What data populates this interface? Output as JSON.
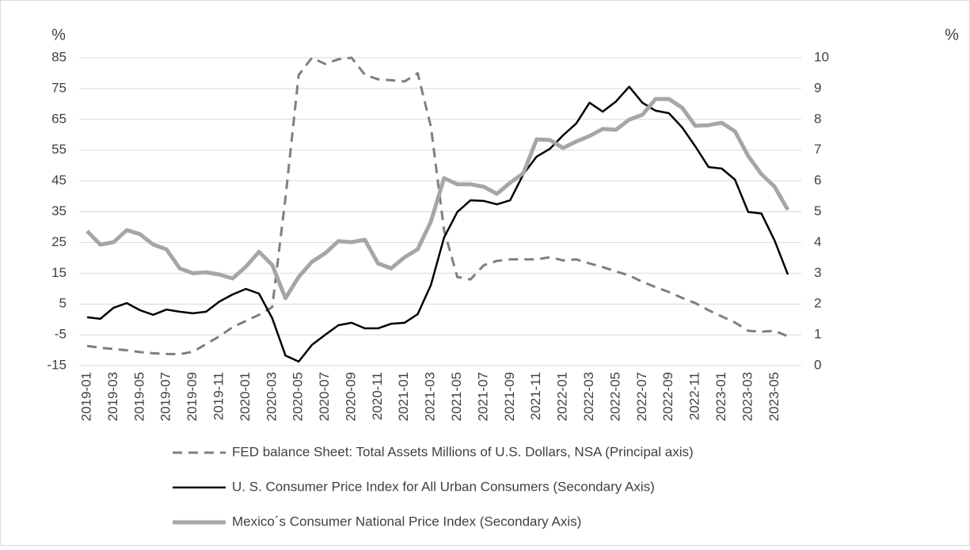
{
  "chart_data": {
    "type": "line",
    "y_label": "%",
    "y2_label": "%",
    "categories": [
      "2019-01",
      null,
      "2019-03",
      null,
      "2019-05",
      null,
      "2019-07",
      null,
      "2019-09",
      null,
      "2019-11",
      null,
      "2020-01",
      null,
      "2020-03",
      null,
      "2020-05",
      null,
      "2020-07",
      null,
      "2020-09",
      null,
      "2020-11",
      null,
      "2021-01",
      null,
      "2021-03",
      null,
      "2021-05",
      null,
      "2021-07",
      null,
      "2021-09",
      null,
      "2021-11",
      null,
      "2022-01",
      null,
      "2022-03",
      null,
      "2022-05",
      null,
      "2022-07",
      null,
      "2022-09",
      null,
      "2022-11",
      null,
      "2023-01",
      null,
      "2023-03",
      null,
      "2023-05",
      null
    ],
    "ylim": [
      -15,
      85
    ],
    "yticks": [
      -15,
      -5,
      5,
      15,
      25,
      35,
      45,
      55,
      65,
      75,
      85
    ],
    "y2lim": [
      0,
      10
    ],
    "y2ticks": [
      0,
      1,
      2,
      3,
      4,
      5,
      6,
      7,
      8,
      9,
      10
    ],
    "grid": true,
    "legend": "bottom",
    "series": [
      {
        "name": "FED balance Sheet: Total Assets Millions of U.S. Dollars, NSA (Principal axis)",
        "color": "#7f7f7f",
        "style": "dashed",
        "axis": "y",
        "values": [
          -8.6,
          -9.2,
          -9.6,
          -10,
          -10.6,
          -11,
          -11.2,
          -11.3,
          -10.5,
          -8,
          -5.5,
          -2.5,
          -0.5,
          1.5,
          4,
          39.5,
          79.4,
          85,
          83,
          84.5,
          85,
          79.5,
          78,
          77.7,
          77.3,
          80,
          62.6,
          29,
          13.8,
          13,
          17.6,
          19,
          19.5,
          19.5,
          19.5,
          20.2,
          19.2,
          19.5,
          18.2,
          17,
          15.6,
          14.3,
          12.2,
          10.5,
          8.9,
          7,
          5.3,
          3,
          1,
          -1,
          -3.7,
          -4,
          -3.7,
          -5.5
        ]
      },
      {
        "name": "U. S. Consumer Price Index for All Urban Consumers (Secondary Axis)",
        "color": "#000000",
        "style": "solid",
        "axis": "y2",
        "values": [
          1.57,
          1.52,
          1.88,
          2.03,
          1.8,
          1.65,
          1.82,
          1.75,
          1.7,
          1.75,
          2.08,
          2.31,
          2.49,
          2.34,
          1.54,
          0.33,
          0.13,
          0.67,
          1.0,
          1.31,
          1.39,
          1.21,
          1.21,
          1.36,
          1.39,
          1.67,
          2.62,
          4.16,
          4.99,
          5.37,
          5.35,
          5.24,
          5.37,
          6.22,
          6.79,
          7.04,
          7.48,
          7.87,
          8.54,
          8.25,
          8.58,
          9.06,
          8.54,
          8.28,
          8.2,
          7.74,
          7.12,
          6.45,
          6.4,
          6.04,
          4.99,
          4.94,
          4.06,
          2.96
        ]
      },
      {
        "name": "Mexico´s Consumer National Price Index (Secondary Axis)",
        "color": "#a6a6a6",
        "style": "thick",
        "axis": "y2",
        "values": [
          4.37,
          3.93,
          4.01,
          4.4,
          4.27,
          3.93,
          3.78,
          3.16,
          3.0,
          3.03,
          2.96,
          2.83,
          3.21,
          3.7,
          3.27,
          2.19,
          2.88,
          3.37,
          3.65,
          4.04,
          4.01,
          4.09,
          3.32,
          3.16,
          3.52,
          3.78,
          4.68,
          6.09,
          5.89,
          5.89,
          5.81,
          5.58,
          5.94,
          6.25,
          7.35,
          7.33,
          7.07,
          7.28,
          7.46,
          7.69,
          7.66,
          7.99,
          8.15,
          8.66,
          8.66,
          8.38,
          7.79,
          7.81,
          7.89,
          7.61,
          6.81,
          6.22,
          5.81,
          5.06
        ]
      }
    ]
  }
}
